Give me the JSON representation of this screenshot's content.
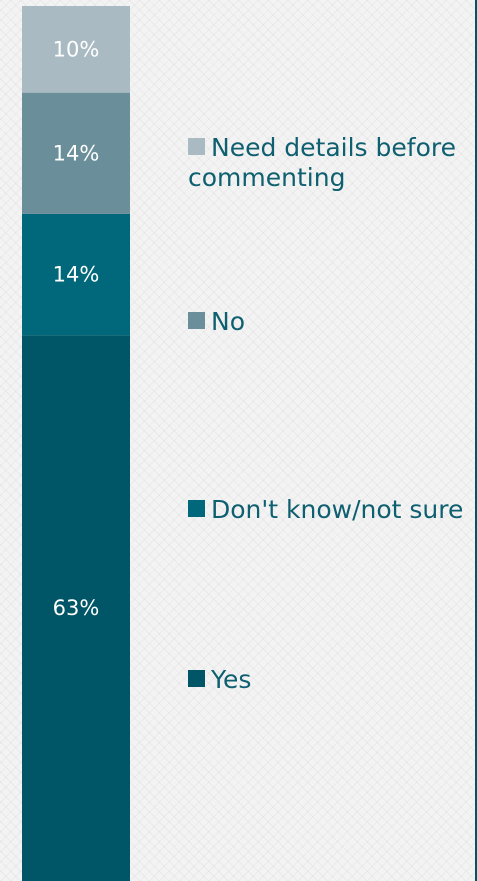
{
  "chart_data": {
    "type": "bar",
    "stacked": true,
    "series": [
      {
        "name": "Yes",
        "value": 63,
        "label": "63%",
        "color": "#005566"
      },
      {
        "name": "Don't know/not sure",
        "value": 14,
        "label": "14%",
        "color": "#00687a"
      },
      {
        "name": "No",
        "value": 14,
        "label": "14%",
        "color": "#6a8f9b"
      },
      {
        "name": "Need details before commenting",
        "value": 10,
        "label": "10%",
        "color": "#a9bac2"
      }
    ],
    "legend_order": [
      "Need details before commenting",
      "No",
      "Don't know/not sure",
      "Yes"
    ],
    "legend_placement": "right",
    "grid": false
  },
  "colors": {
    "background": "#f3f3f3",
    "legend_text": "#0e5f6f",
    "label_text": "#ffffff",
    "edge": "#005566"
  }
}
